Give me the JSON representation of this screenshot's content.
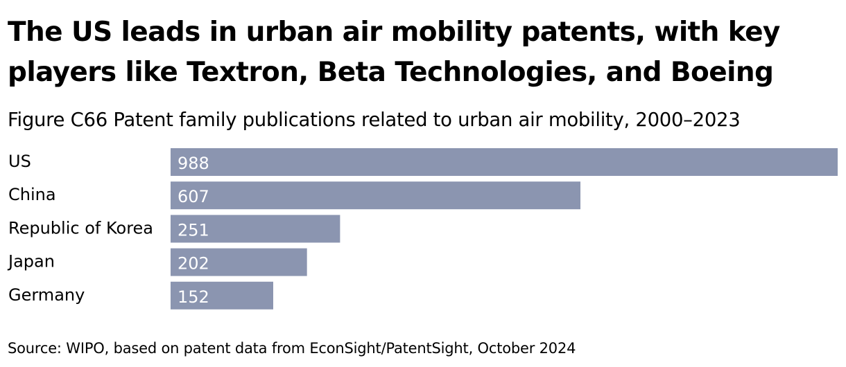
{
  "title": "The US leads in urban air mobility patents, with key players like Textron, Beta Technologies, and Boeing",
  "subtitle": "Figure C66 Patent family publications related to urban air mobility, 2000–2023",
  "source": "Source: WIPO, based on patent data from EconSight/PatentSight, October 2024",
  "colors": {
    "bar": "#8b95b0",
    "value_text": "#ffffff",
    "text": "#000000"
  },
  "chart_data": {
    "type": "bar",
    "orientation": "horizontal",
    "title": "Figure C66 Patent family publications related to urban air mobility, 2000–2023",
    "xlabel": "",
    "ylabel": "",
    "categories": [
      "US",
      "China",
      "Republic of Korea",
      "Japan",
      "Germany"
    ],
    "values": [
      988,
      607,
      251,
      202,
      152
    ],
    "xlim": [
      0,
      988
    ],
    "grid": false,
    "legend": "none",
    "data_labels": "inside-left"
  }
}
